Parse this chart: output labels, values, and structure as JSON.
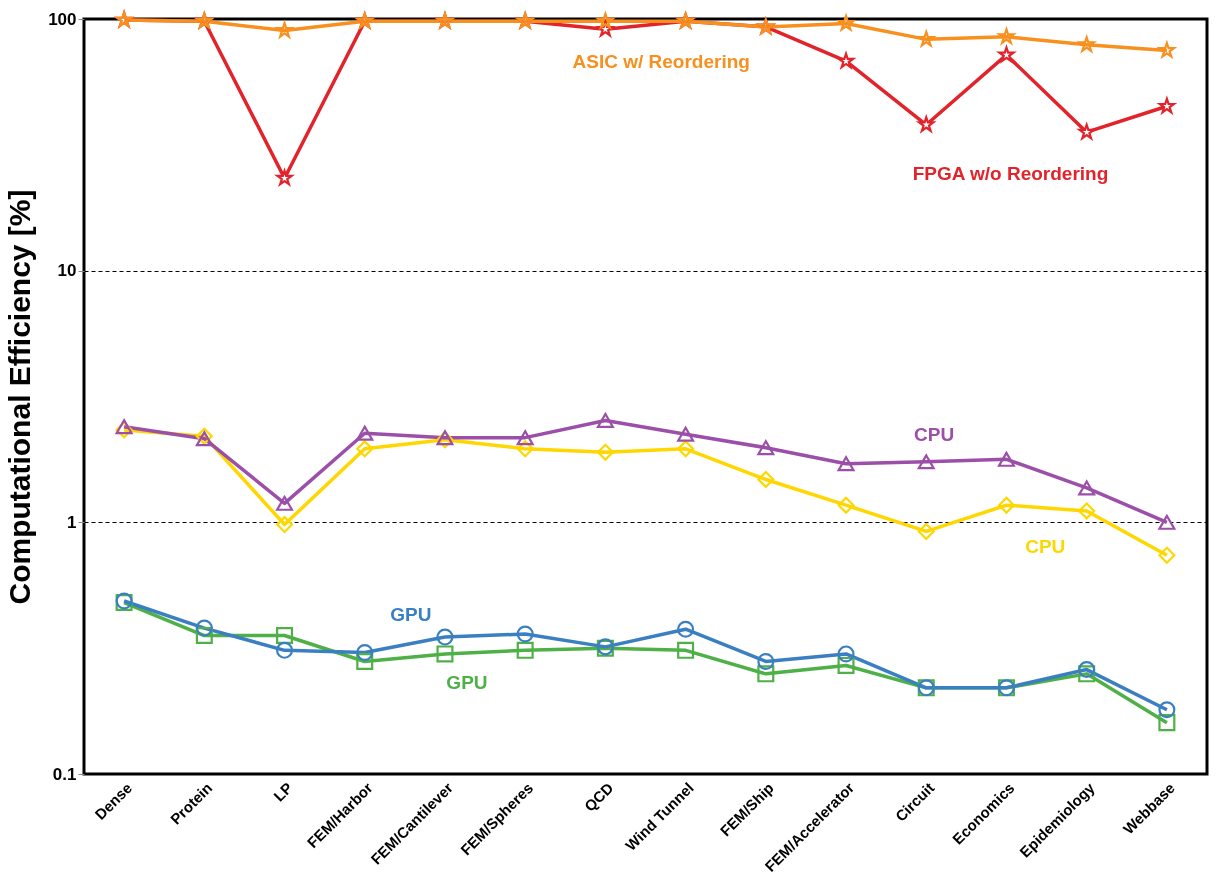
{
  "chart_data": {
    "type": "line",
    "ylabel": "Computational Efficiency [%]",
    "categories": [
      "Dense",
      "Protein",
      "LP",
      "FEM/Harbor",
      "FEM/Cantilever",
      "FEM/Spheres",
      "QCD",
      "Wind Tunnel",
      "FEM/Ship",
      "FEM/Accelerator",
      "Circuit",
      "Economics",
      "Epidemiology",
      "Webbase"
    ],
    "series": [
      {
        "name": "FPGA w/o Reordering",
        "color": "#e3232b",
        "marker": "star",
        "values": [
          99,
          98,
          23.3,
          98,
          98,
          98,
          91,
          98,
          93,
          68,
          38,
          72,
          35.5,
          45
        ]
      },
      {
        "name": "ASIC w/ Reordering",
        "color": "#f7901e",
        "marker": "star",
        "values": [
          99,
          98,
          90,
          98,
          98,
          98,
          98,
          98,
          93,
          96,
          83,
          85,
          79,
          75
        ]
      },
      {
        "name": "CPU",
        "color": "#ffd700",
        "marker": "diamond",
        "values": [
          2.33,
          2.2,
          0.98,
          1.96,
          2.13,
          1.96,
          1.9,
          1.96,
          1.48,
          1.17,
          0.92,
          1.17,
          1.11,
          0.74
        ]
      },
      {
        "name": "CPU",
        "color": "#9b4fa8",
        "marker": "triangle",
        "values": [
          2.4,
          2.15,
          1.19,
          2.26,
          2.17,
          2.17,
          2.54,
          2.24,
          1.98,
          1.71,
          1.74,
          1.78,
          1.37,
          1.0
        ]
      },
      {
        "name": "GPU",
        "color": "#4eb047",
        "marker": "square",
        "values": [
          0.48,
          0.355,
          0.355,
          0.28,
          0.3,
          0.31,
          0.316,
          0.31,
          0.25,
          0.27,
          0.22,
          0.22,
          0.25,
          0.16
        ]
      },
      {
        "name": "GPU",
        "color": "#3a7fc1",
        "marker": "circle",
        "values": [
          0.487,
          0.38,
          0.31,
          0.304,
          0.35,
          0.36,
          0.32,
          0.376,
          0.28,
          0.3,
          0.22,
          0.22,
          0.26,
          0.18
        ]
      }
    ],
    "ylim": [
      0.1,
      100
    ],
    "yticks": [
      0.1,
      1,
      10,
      100
    ],
    "log": true,
    "grid": "y",
    "legend": false,
    "line_style": "solid"
  }
}
